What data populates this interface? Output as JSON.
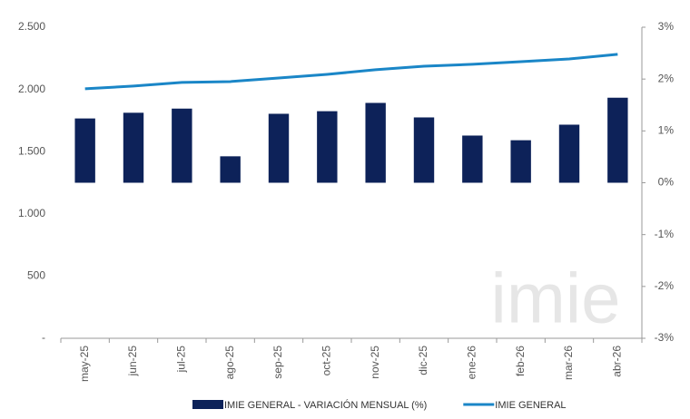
{
  "chart_data": {
    "type": "bar",
    "categories": [
      "may-25",
      "jun-25",
      "jul-25",
      "ago-25",
      "sep-25",
      "oct-25",
      "nov-25",
      "dic-25",
      "ene-26",
      "feb-26",
      "mar-26",
      "abr-26"
    ],
    "series": [
      {
        "name": "IMIE GENERAL - VARIACIÓN MENSUAL (%)",
        "type": "bar",
        "axis": "y2",
        "color": "#0d2259",
        "values": [
          1.24,
          1.35,
          1.43,
          0.51,
          1.33,
          1.38,
          1.54,
          1.26,
          0.91,
          0.82,
          1.12,
          1.64
        ]
      },
      {
        "name": "IMIE GENERAL",
        "type": "line",
        "axis": "y",
        "color": "#1a86c7",
        "values": [
          2005,
          2027,
          2056,
          2063,
          2092,
          2121,
          2158,
          2187,
          2202,
          2223,
          2245,
          2282
        ]
      }
    ],
    "ylim": [
      0,
      2500
    ],
    "yticks": [
      {
        "value": 0,
        "label": "-"
      },
      500,
      {
        "value": 1000,
        "label": "1.000"
      },
      {
        "value": 1500,
        "label": "1.500"
      },
      {
        "value": 2000,
        "label": "2.000"
      },
      {
        "value": 2500,
        "label": "2.500"
      }
    ],
    "y2lim": [
      -3,
      3
    ],
    "y2ticks": [
      {
        "value": -3,
        "label": "-3%"
      },
      {
        "value": -2,
        "label": "-2%"
      },
      {
        "value": -1,
        "label": "-1%"
      },
      {
        "value": 0,
        "label": "0%"
      },
      {
        "value": 1,
        "label": "1%"
      },
      {
        "value": 2,
        "label": "2%"
      },
      {
        "value": 3,
        "label": "3%"
      }
    ],
    "watermark": "imie",
    "grid": false
  }
}
